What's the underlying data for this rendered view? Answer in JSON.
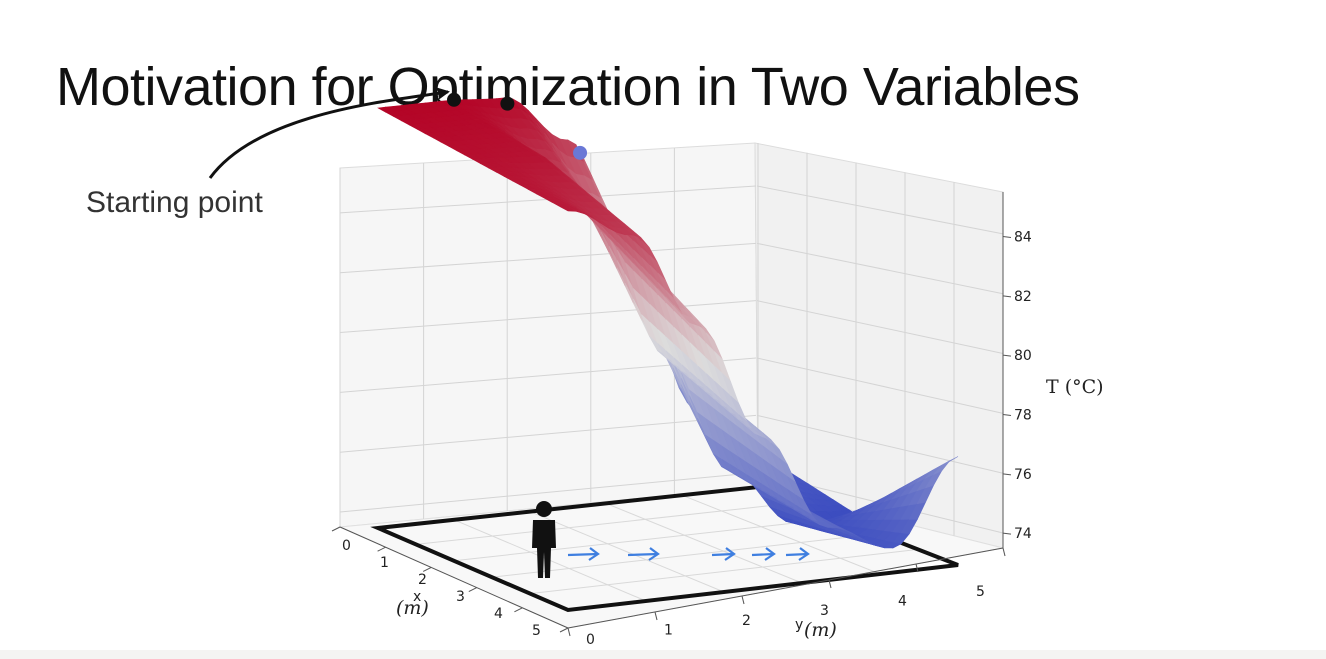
{
  "slide": {
    "title": "Motivation for Optimization in Two Variables",
    "annotation": "Starting point"
  },
  "chart_data": {
    "type": "surface",
    "title": "",
    "x_axis": {
      "label": "x",
      "unit": "(m)",
      "ticks": [
        "0",
        "1",
        "2",
        "3",
        "4",
        "5"
      ],
      "range": [
        0,
        5
      ]
    },
    "y_axis": {
      "label": "y",
      "unit": "(m)",
      "ticks": [
        "0",
        "1",
        "2",
        "3",
        "4",
        "5"
      ],
      "range": [
        0,
        5
      ]
    },
    "z_axis": {
      "label": "T (°C)",
      "ticks": [
        "74",
        "76",
        "78",
        "80",
        "82",
        "84"
      ],
      "range": [
        73.5,
        85.5
      ]
    },
    "colormap": {
      "name": "coolwarm",
      "low": "#3b4cc0",
      "mid": "#dddcdc",
      "high": "#b40426"
    },
    "surface_rows": [
      {
        "x": 0.0,
        "T": [
          85.5,
          85.5,
          85.4,
          84.0,
          80.0,
          76.0,
          74.5
        ]
      },
      {
        "x": 2.5,
        "T": [
          85.2,
          85.1,
          83.0,
          79.0,
          75.5,
          73.8,
          73.8
        ]
      },
      {
        "x": 5.0,
        "T": [
          84.9,
          84.0,
          81.2,
          77.8,
          75.0,
          74.2,
          76.6
        ]
      }
    ],
    "points": [
      {
        "name": "start",
        "x": 0.0,
        "y": 1.0,
        "T": 85.5,
        "color": "#111111"
      },
      {
        "name": "step-1",
        "x": 0.3,
        "y": 1.55,
        "T": 85.4,
        "color": "#111111"
      },
      {
        "name": "step-2",
        "x": 0.7,
        "y": 2.3,
        "T": 84.0,
        "color": "#6a78d6"
      }
    ],
    "floor_arrows": 5,
    "arrow_color": "#3f7fe0",
    "grid": true
  }
}
